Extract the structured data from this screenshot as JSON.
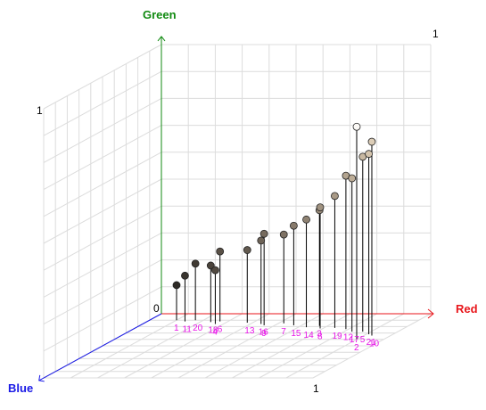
{
  "chart_data": {
    "type": "scatter",
    "dimensions": 3,
    "axes": {
      "x": {
        "label": "Red",
        "range": [
          0,
          1
        ],
        "tick_labels": [
          "1"
        ],
        "color": "#e8161b"
      },
      "y": {
        "label": "Green",
        "range": [
          0,
          1
        ],
        "tick_labels": [
          "0",
          "1",
          "1"
        ],
        "color": "#118a11"
      },
      "z": {
        "label": "Blue",
        "range": [
          0,
          1
        ],
        "tick_labels": [
          "1"
        ],
        "color": "#1a1ae6"
      }
    },
    "grid": true,
    "point_label_color": "#e817e8",
    "drop_line_color": "#000000",
    "points": [
      {
        "label": "1",
        "r": 0.1,
        "g": 0.13,
        "b": 0.1,
        "color": "#2e2a26"
      },
      {
        "label": "11",
        "r": 0.14,
        "g": 0.17,
        "b": 0.12,
        "color": "#39342e"
      },
      {
        "label": "20",
        "r": 0.17,
        "g": 0.21,
        "b": 0.1,
        "color": "#403a33"
      },
      {
        "label": "18",
        "r": 0.24,
        "g": 0.21,
        "b": 0.13,
        "color": "#4a433b"
      },
      {
        "label": "4",
        "r": 0.27,
        "g": 0.2,
        "b": 0.16,
        "color": "#524a41"
      },
      {
        "label": "6",
        "r": 0.27,
        "g": 0.26,
        "b": 0.12,
        "color": "#5a5147"
      },
      {
        "label": "13",
        "r": 0.38,
        "g": 0.27,
        "b": 0.14,
        "color": "#635a4f"
      },
      {
        "label": "16",
        "r": 0.44,
        "g": 0.31,
        "b": 0.16,
        "color": "#6d6357"
      },
      {
        "label": "9",
        "r": 0.46,
        "g": 0.34,
        "b": 0.18,
        "color": "#766b5e"
      },
      {
        "label": "7",
        "r": 0.52,
        "g": 0.33,
        "b": 0.15,
        "color": "#7e7264"
      },
      {
        "label": "15",
        "r": 0.57,
        "g": 0.37,
        "b": 0.18,
        "color": "#877a6b"
      },
      {
        "label": "14",
        "r": 0.63,
        "g": 0.4,
        "b": 0.21,
        "color": "#8f8272"
      },
      {
        "label": "3",
        "r": 0.67,
        "g": 0.43,
        "b": 0.19,
        "color": "#988a79"
      },
      {
        "label": "8",
        "r": 0.69,
        "g": 0.45,
        "b": 0.23,
        "color": "#a09280"
      },
      {
        "label": "19",
        "r": 0.74,
        "g": 0.49,
        "b": 0.22,
        "color": "#a99a87"
      },
      {
        "label": "12",
        "r": 0.79,
        "g": 0.57,
        "b": 0.24,
        "color": "#b3a48f"
      },
      {
        "label": "17",
        "r": 0.83,
        "g": 0.57,
        "b": 0.28,
        "color": "#bdad97"
      },
      {
        "label": "5",
        "r": 0.87,
        "g": 0.65,
        "b": 0.28,
        "color": "#c8b8a2"
      },
      {
        "label": "21",
        "r": 0.91,
        "g": 0.67,
        "b": 0.32,
        "color": "#d3c3ac"
      },
      {
        "label": "10",
        "r": 0.93,
        "g": 0.72,
        "b": 0.34,
        "color": "#dccdb7"
      },
      {
        "label": "2",
        "r": 0.9,
        "g": 0.79,
        "b": 0.4,
        "color": "#fbf9f6"
      }
    ]
  }
}
